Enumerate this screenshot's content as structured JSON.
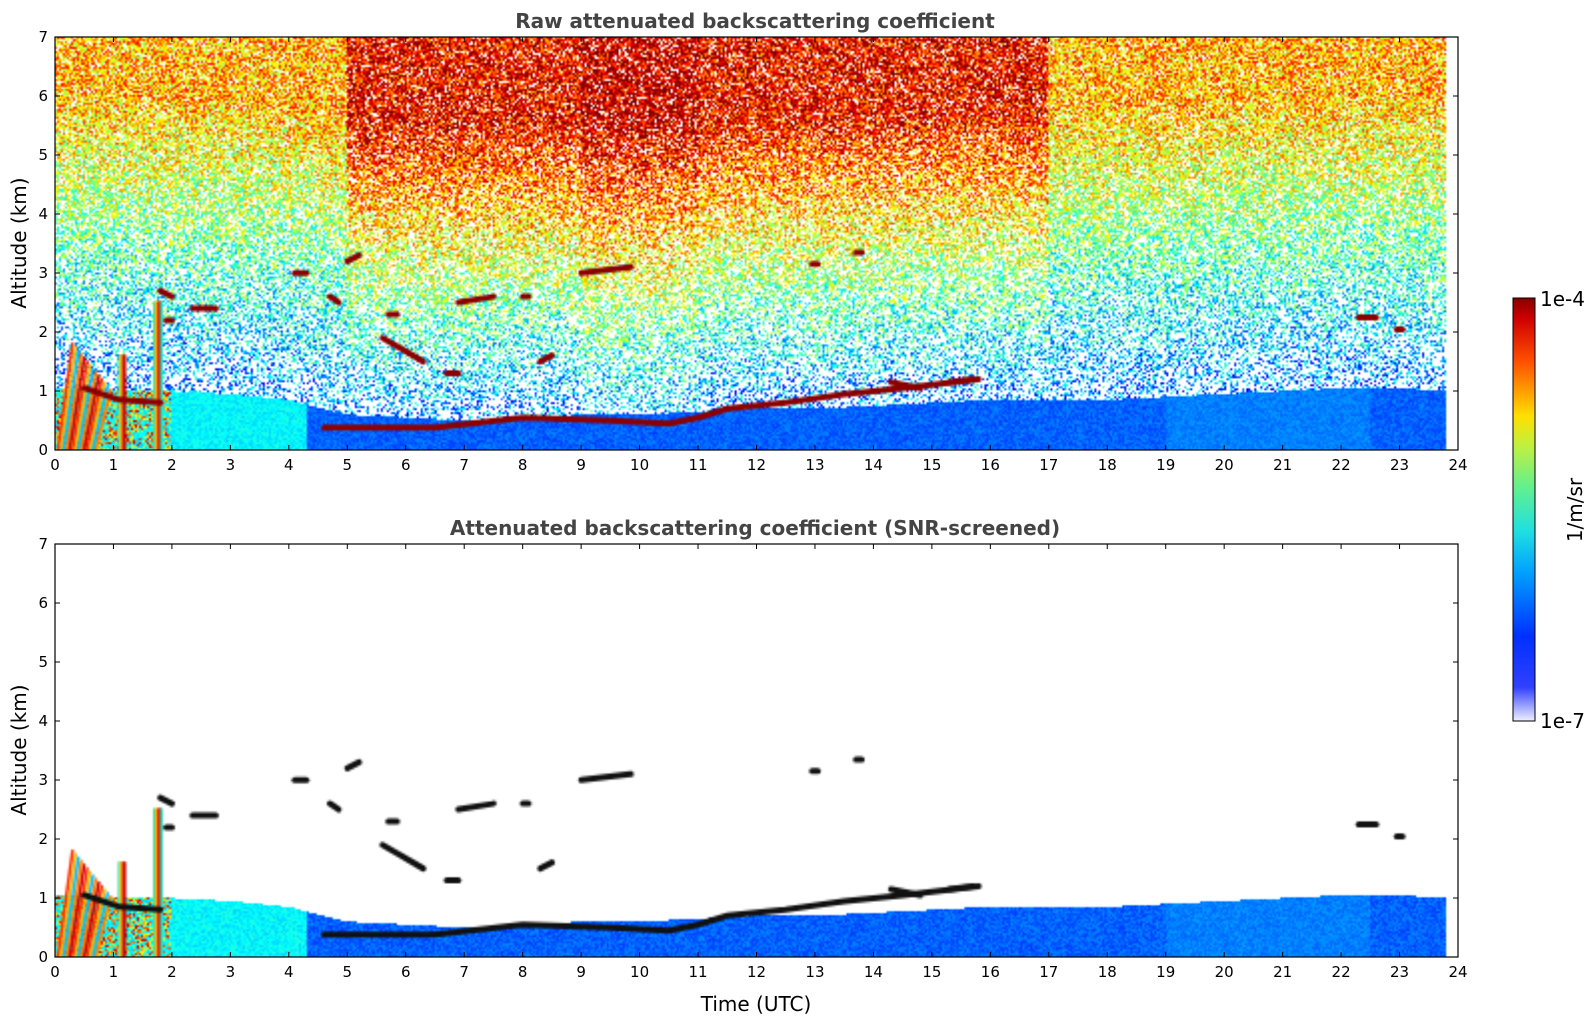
{
  "chart_data": [
    {
      "type": "heatmap",
      "title": "Raw attenuated backscattering coefficient",
      "xlabel": "",
      "ylabel": "Altitude (km)",
      "xlim": [
        0,
        24
      ],
      "ylim": [
        0,
        7
      ],
      "xticks": [
        0,
        1,
        2,
        3,
        4,
        5,
        6,
        7,
        8,
        9,
        10,
        11,
        12,
        13,
        14,
        15,
        16,
        17,
        18,
        19,
        20,
        21,
        22,
        23,
        24
      ],
      "yticks": [
        0,
        1,
        2,
        3,
        4,
        5,
        6,
        7
      ],
      "screened": false
    },
    {
      "type": "heatmap",
      "title": "Attenuated backscattering coefficient (SNR-screened)",
      "xlabel": "Time (UTC)",
      "ylabel": "Altitude (km)",
      "xlim": [
        0,
        24
      ],
      "ylim": [
        0,
        7
      ],
      "xticks": [
        0,
        1,
        2,
        3,
        4,
        5,
        6,
        7,
        8,
        9,
        10,
        11,
        12,
        13,
        14,
        15,
        16,
        17,
        18,
        19,
        20,
        21,
        22,
        23,
        24
      ],
      "yticks": [
        0,
        1,
        2,
        3,
        4,
        5,
        6,
        7
      ],
      "screened": true
    }
  ],
  "colorbar": {
    "max_label": "1e-4",
    "min_label": "1e-7",
    "unit_label": "1/m/sr",
    "scale": "log",
    "colormap": "jet"
  },
  "features": {
    "data_end_hour": 23.8,
    "boundary_layer_top_km": [
      [
        0,
        1.05
      ],
      [
        2,
        1.0
      ],
      [
        3,
        0.95
      ],
      [
        4,
        0.85
      ],
      [
        5,
        0.6
      ],
      [
        6,
        0.55
      ],
      [
        7,
        0.5
      ],
      [
        8,
        0.55
      ],
      [
        9,
        0.6
      ],
      [
        10,
        0.6
      ],
      [
        11,
        0.65
      ],
      [
        12,
        0.7
      ],
      [
        13,
        0.7
      ],
      [
        14,
        0.75
      ],
      [
        15,
        0.8
      ],
      [
        16,
        0.85
      ],
      [
        17,
        0.85
      ],
      [
        18,
        0.85
      ],
      [
        19,
        0.9
      ],
      [
        20,
        0.95
      ],
      [
        21,
        1.0
      ],
      [
        22,
        1.05
      ],
      [
        23,
        1.05
      ],
      [
        23.8,
        1.0
      ]
    ],
    "cloud_base_km": [
      [
        4.6,
        0.38
      ],
      [
        6.5,
        0.38
      ],
      [
        8.0,
        0.55
      ],
      [
        9.5,
        0.5
      ],
      [
        10.5,
        0.45
      ],
      [
        11.0,
        0.55
      ],
      [
        11.5,
        0.7
      ],
      [
        12.5,
        0.8
      ],
      [
        13.5,
        0.95
      ],
      [
        14.5,
        1.05
      ],
      [
        15.8,
        1.2
      ]
    ],
    "cloud_segments_km": [
      [
        2.35,
        2.75,
        2.4,
        2.4
      ],
      [
        4.1,
        4.3,
        3.0,
        3.0
      ],
      [
        5.0,
        5.2,
        3.2,
        3.3
      ],
      [
        4.7,
        4.85,
        2.6,
        2.5
      ],
      [
        5.6,
        6.3,
        1.9,
        1.5
      ],
      [
        5.7,
        5.85,
        2.3,
        2.3
      ],
      [
        6.7,
        6.9,
        1.3,
        1.3
      ],
      [
        6.9,
        7.5,
        2.5,
        2.6
      ],
      [
        8.0,
        8.1,
        2.6,
        2.6
      ],
      [
        8.3,
        8.5,
        1.5,
        1.6
      ],
      [
        9.0,
        9.85,
        3.0,
        3.1
      ],
      [
        12.95,
        13.05,
        3.15,
        3.15
      ],
      [
        13.7,
        13.8,
        3.35,
        3.35
      ],
      [
        14.3,
        14.8,
        1.15,
        1.05
      ],
      [
        15.3,
        15.7,
        1.15,
        1.2
      ],
      [
        22.3,
        22.6,
        2.25,
        2.25
      ],
      [
        22.95,
        23.05,
        2.05,
        2.05
      ],
      [
        1.8,
        2.0,
        2.7,
        2.6
      ],
      [
        1.9,
        2.0,
        2.2,
        2.2
      ]
    ]
  }
}
